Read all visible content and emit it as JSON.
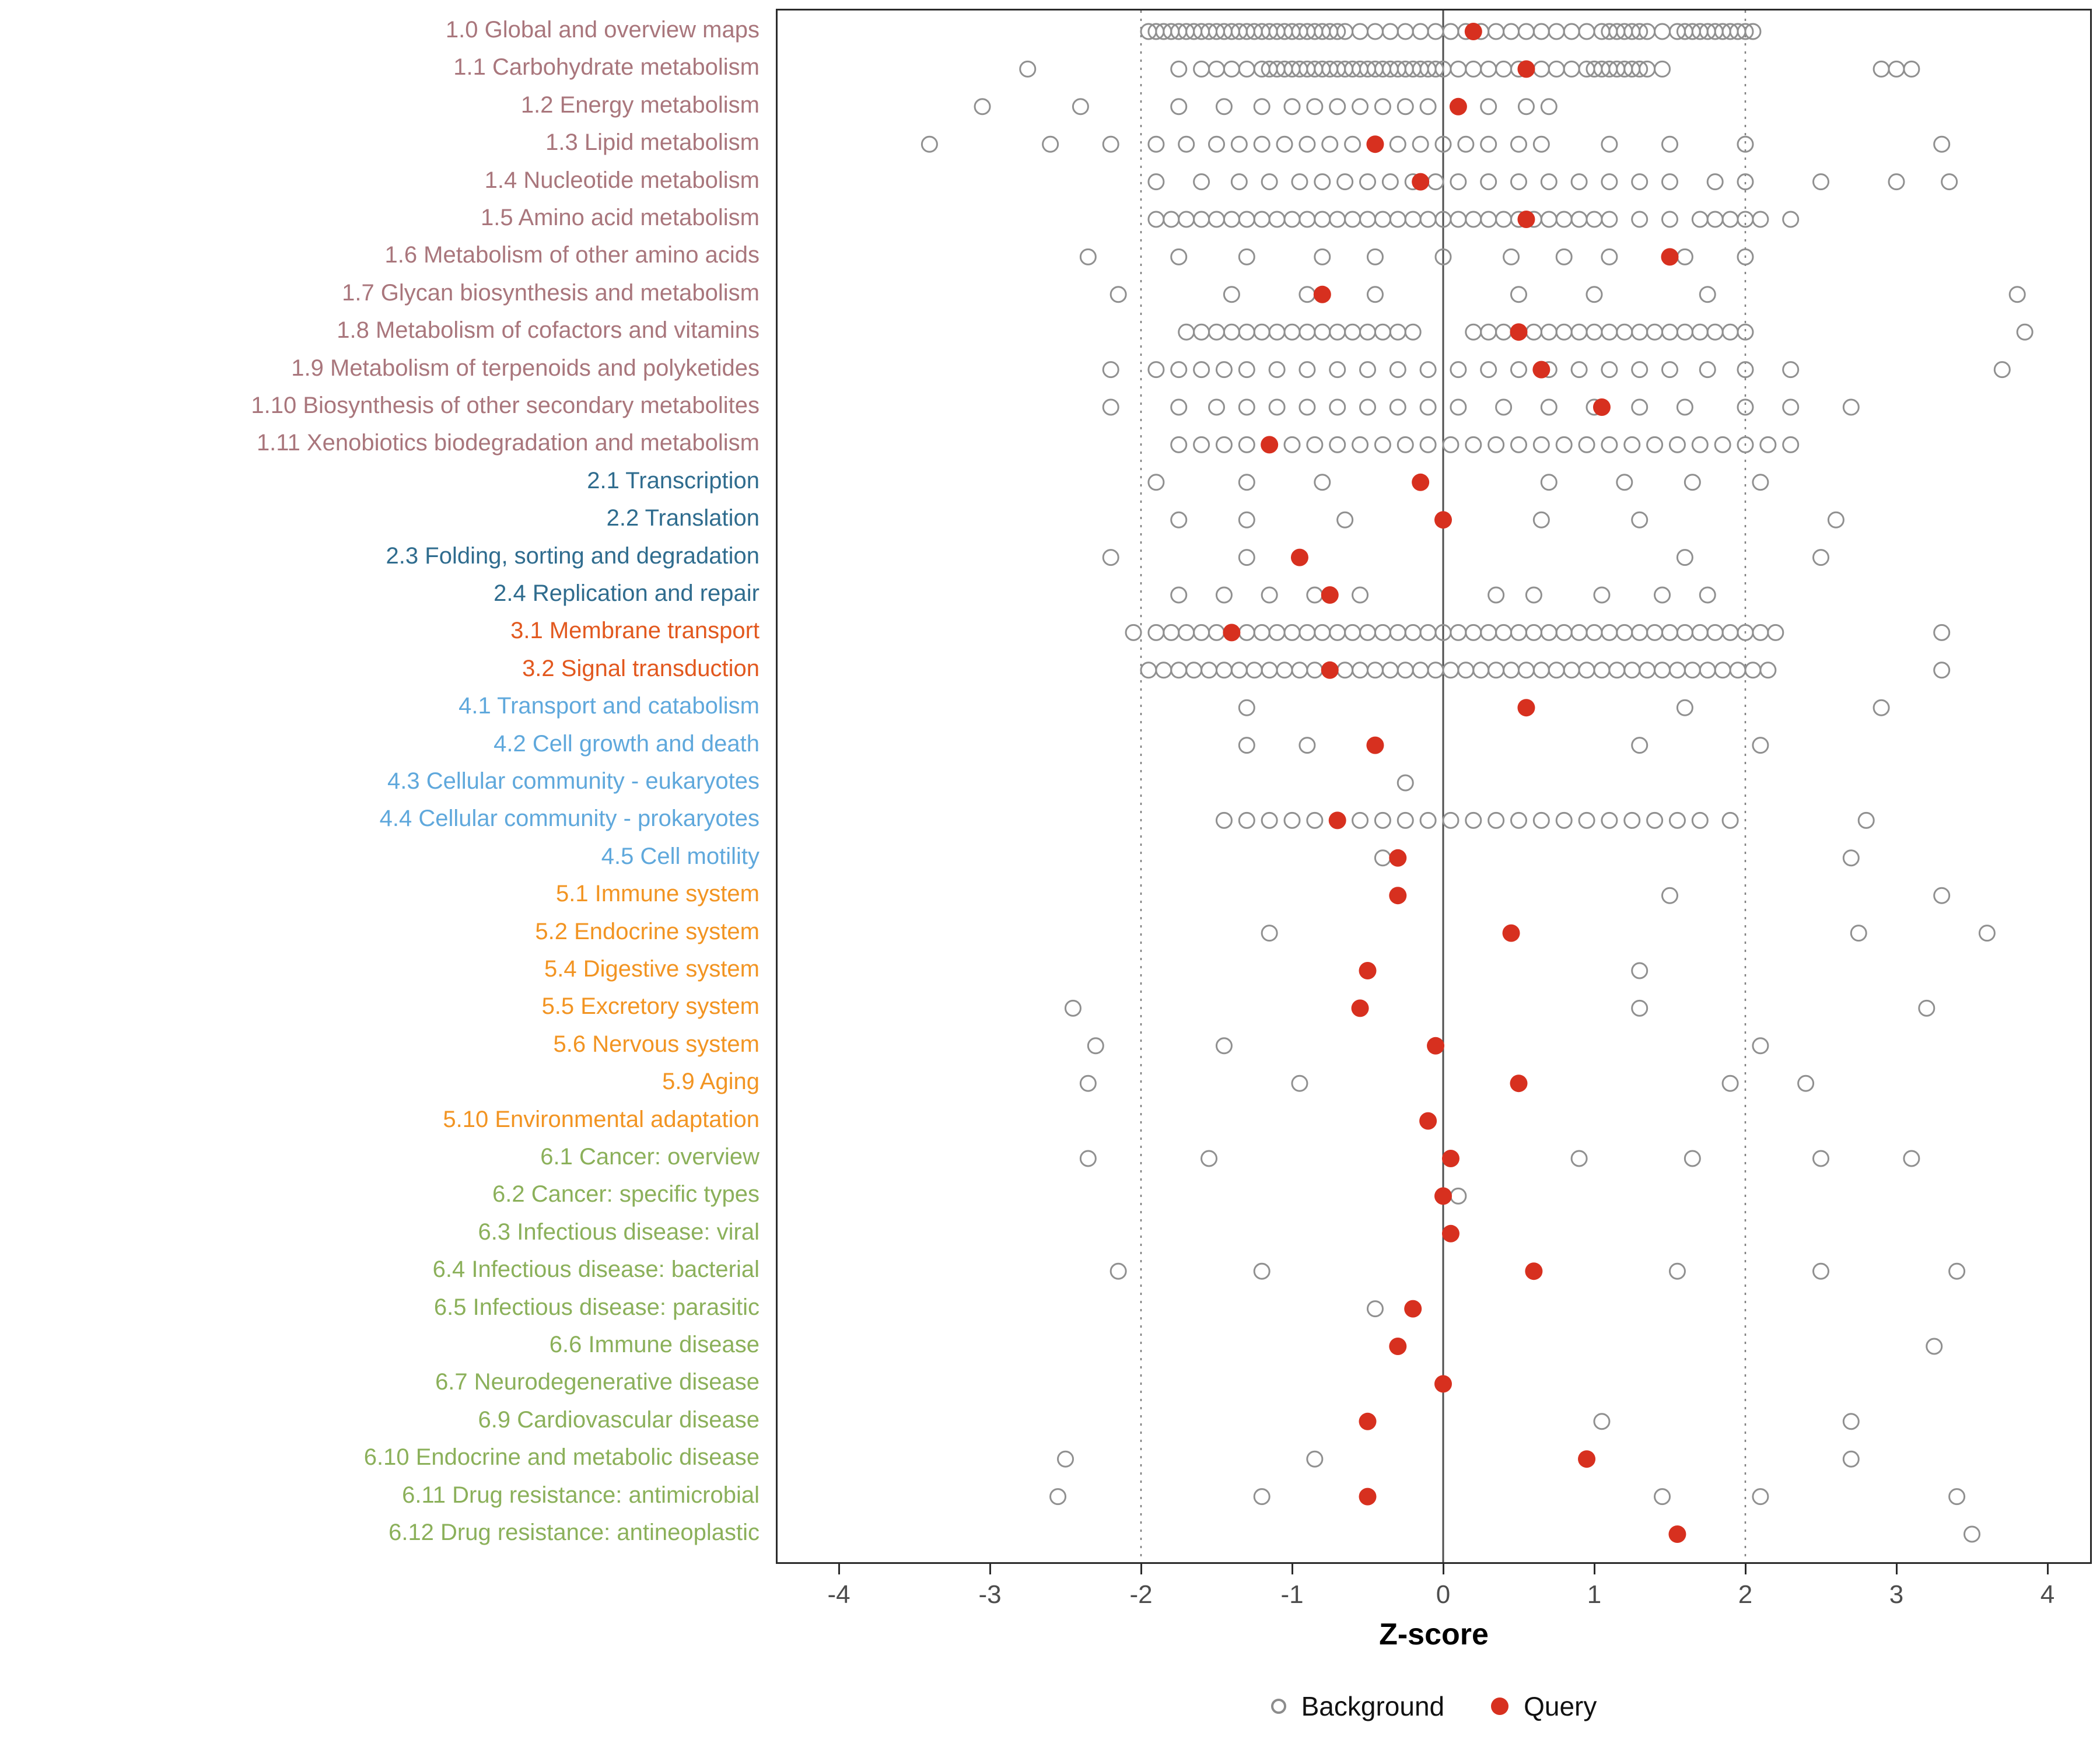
{
  "chart_data": {
    "type": "scatter",
    "title": "",
    "xlabel": "Z-score",
    "xlim": [
      -4.4,
      4.28
    ],
    "x_ticks": [
      -4,
      -3,
      -2,
      -1,
      0,
      1,
      2,
      3,
      4
    ],
    "grid": false,
    "legend_position": "bottom",
    "reference_lines": {
      "solid": [
        0
      ],
      "dotted": [
        -2,
        2
      ]
    },
    "legend": {
      "background_label": "Background",
      "query_label": "Query"
    },
    "colors": {
      "query": "#D7301F",
      "background_stroke": "#909090",
      "axis_text": "#4D4D4D",
      "dotted_line": "#7F7F7F",
      "zero_line": "#4D4D4D",
      "groups": {
        "metabolism": "#A9767C",
        "genetic": "#2F6C8E",
        "environmental": "#E2581E",
        "cellular": "#5FA8DC",
        "organismal": "#F29422",
        "disease": "#8BB05A"
      }
    },
    "rows": [
      {
        "label": "1.0 Global and overview maps",
        "group": "metabolism",
        "query": 0.2,
        "background": [
          -1.95,
          -1.9,
          -1.85,
          -1.8,
          -1.75,
          -1.7,
          -1.65,
          -1.6,
          -1.55,
          -1.5,
          -1.45,
          -1.4,
          -1.35,
          -1.3,
          -1.25,
          -1.2,
          -1.15,
          -1.1,
          -1.05,
          -1.0,
          -0.95,
          -0.9,
          -0.85,
          -0.8,
          -0.75,
          -0.7,
          -0.65,
          -0.55,
          -0.45,
          -0.35,
          -0.25,
          -0.15,
          -0.05,
          0.05,
          0.15,
          0.25,
          0.35,
          0.45,
          0.55,
          0.65,
          0.75,
          0.85,
          0.95,
          1.05,
          1.1,
          1.15,
          1.2,
          1.25,
          1.3,
          1.35,
          1.45,
          1.55,
          1.6,
          1.65,
          1.7,
          1.75,
          1.8,
          1.85,
          1.9,
          1.95,
          2.0,
          2.05
        ]
      },
      {
        "label": "1.1 Carbohydrate metabolism",
        "group": "metabolism",
        "query": 0.55,
        "background": [
          -2.75,
          -1.75,
          -1.6,
          -1.5,
          -1.4,
          -1.3,
          -1.2,
          -1.15,
          -1.1,
          -1.05,
          -1.0,
          -0.95,
          -0.9,
          -0.85,
          -0.8,
          -0.75,
          -0.7,
          -0.65,
          -0.6,
          -0.55,
          -0.5,
          -0.45,
          -0.4,
          -0.35,
          -0.3,
          -0.25,
          -0.2,
          -0.15,
          -0.1,
          -0.05,
          0.0,
          0.1,
          0.2,
          0.3,
          0.4,
          0.5,
          0.65,
          0.75,
          0.85,
          0.95,
          1.0,
          1.05,
          1.1,
          1.15,
          1.2,
          1.25,
          1.3,
          1.35,
          1.45,
          2.9,
          3.0,
          3.1
        ]
      },
      {
        "label": "1.2 Energy metabolism",
        "group": "metabolism",
        "query": 0.1,
        "background": [
          -3.05,
          -2.4,
          -1.75,
          -1.45,
          -1.2,
          -1.0,
          -0.85,
          -0.7,
          -0.55,
          -0.4,
          -0.25,
          -0.1,
          0.3,
          0.55,
          0.7
        ]
      },
      {
        "label": "1.3 Lipid metabolism",
        "group": "metabolism",
        "query": -0.45,
        "background": [
          -3.4,
          -2.6,
          -2.2,
          -1.9,
          -1.7,
          -1.5,
          -1.35,
          -1.2,
          -1.05,
          -0.9,
          -0.75,
          -0.6,
          -0.3,
          -0.15,
          0.0,
          0.15,
          0.3,
          0.5,
          0.65,
          1.1,
          1.5,
          2.0,
          3.3
        ]
      },
      {
        "label": "1.4 Nucleotide metabolism",
        "group": "metabolism",
        "query": -0.15,
        "background": [
          -1.9,
          -1.6,
          -1.35,
          -1.15,
          -0.95,
          -0.8,
          -0.65,
          -0.5,
          -0.35,
          -0.2,
          -0.05,
          0.1,
          0.3,
          0.5,
          0.7,
          0.9,
          1.1,
          1.3,
          1.5,
          1.8,
          2.0,
          2.5,
          3.0,
          3.35
        ]
      },
      {
        "label": "1.5 Amino acid metabolism",
        "group": "metabolism",
        "query": 0.55,
        "background": [
          -1.9,
          -1.8,
          -1.7,
          -1.6,
          -1.5,
          -1.4,
          -1.3,
          -1.2,
          -1.1,
          -1.0,
          -0.9,
          -0.8,
          -0.7,
          -0.6,
          -0.5,
          -0.4,
          -0.3,
          -0.2,
          -0.1,
          0.0,
          0.1,
          0.2,
          0.3,
          0.4,
          0.5,
          0.6,
          0.7,
          0.8,
          0.9,
          1.0,
          1.1,
          1.3,
          1.5,
          1.7,
          1.8,
          1.9,
          2.0,
          2.1,
          2.3
        ]
      },
      {
        "label": "1.6 Metabolism of other amino acids",
        "group": "metabolism",
        "query": 1.5,
        "background": [
          -2.35,
          -1.75,
          -1.3,
          -0.8,
          -0.45,
          0.0,
          0.45,
          0.8,
          1.1,
          1.6,
          2.0
        ]
      },
      {
        "label": "1.7 Glycan biosynthesis and metabolism",
        "group": "metabolism",
        "query": -0.8,
        "background": [
          -2.15,
          -1.4,
          -0.9,
          -0.45,
          0.5,
          1.0,
          1.75,
          3.8
        ]
      },
      {
        "label": "1.8 Metabolism of cofactors and vitamins",
        "group": "metabolism",
        "query": 0.5,
        "background": [
          -1.7,
          -1.6,
          -1.5,
          -1.4,
          -1.3,
          -1.2,
          -1.1,
          -1.0,
          -0.9,
          -0.8,
          -0.7,
          -0.6,
          -0.5,
          -0.4,
          -0.3,
          -0.2,
          0.2,
          0.3,
          0.4,
          0.5,
          0.6,
          0.7,
          0.8,
          0.9,
          1.0,
          1.1,
          1.2,
          1.3,
          1.4,
          1.5,
          1.6,
          1.7,
          1.8,
          1.9,
          2.0,
          3.85
        ]
      },
      {
        "label": "1.9 Metabolism of terpenoids and polyketides",
        "group": "metabolism",
        "query": 0.65,
        "background": [
          -2.2,
          -1.9,
          -1.75,
          -1.6,
          -1.45,
          -1.3,
          -1.1,
          -0.9,
          -0.7,
          -0.5,
          -0.3,
          -0.1,
          0.1,
          0.3,
          0.5,
          0.7,
          0.9,
          1.1,
          1.3,
          1.5,
          1.75,
          2.0,
          2.3,
          3.7
        ]
      },
      {
        "label": "1.10 Biosynthesis of other secondary metabolites",
        "group": "metabolism",
        "query": 1.05,
        "background": [
          -2.2,
          -1.75,
          -1.5,
          -1.3,
          -1.1,
          -0.9,
          -0.7,
          -0.5,
          -0.3,
          -0.1,
          0.1,
          0.4,
          0.7,
          1.0,
          1.3,
          1.6,
          2.0,
          2.3,
          2.7
        ]
      },
      {
        "label": "1.11 Xenobiotics biodegradation and metabolism",
        "group": "metabolism",
        "query": -1.15,
        "background": [
          -1.75,
          -1.6,
          -1.45,
          -1.3,
          -1.15,
          -1.0,
          -0.85,
          -0.7,
          -0.55,
          -0.4,
          -0.25,
          -0.1,
          0.05,
          0.2,
          0.35,
          0.5,
          0.65,
          0.8,
          0.95,
          1.1,
          1.25,
          1.4,
          1.55,
          1.7,
          1.85,
          2.0,
          2.15,
          2.3
        ]
      },
      {
        "label": "2.1 Transcription",
        "group": "genetic",
        "query": -0.15,
        "background": [
          -1.9,
          -1.3,
          -0.8,
          0.7,
          1.2,
          1.65,
          2.1
        ]
      },
      {
        "label": "2.2 Translation",
        "group": "genetic",
        "query": 0.0,
        "background": [
          -1.75,
          -1.3,
          -0.65,
          0.65,
          1.3,
          2.6
        ]
      },
      {
        "label": "2.3 Folding, sorting and degradation",
        "group": "genetic",
        "query": -0.95,
        "background": [
          -2.2,
          -1.3,
          1.6,
          2.5
        ]
      },
      {
        "label": "2.4 Replication and repair",
        "group": "genetic",
        "query": -0.75,
        "background": [
          -1.75,
          -1.45,
          -1.15,
          -0.85,
          -0.55,
          0.35,
          0.6,
          1.05,
          1.45,
          1.75
        ]
      },
      {
        "label": "3.1 Membrane transport",
        "group": "environmental",
        "query": -1.4,
        "background": [
          -2.05,
          -1.9,
          -1.8,
          -1.7,
          -1.6,
          -1.5,
          -1.3,
          -1.2,
          -1.1,
          -1.0,
          -0.9,
          -0.8,
          -0.7,
          -0.6,
          -0.5,
          -0.4,
          -0.3,
          -0.2,
          -0.1,
          0.0,
          0.1,
          0.2,
          0.3,
          0.4,
          0.5,
          0.6,
          0.7,
          0.8,
          0.9,
          1.0,
          1.1,
          1.2,
          1.3,
          1.4,
          1.5,
          1.6,
          1.7,
          1.8,
          1.9,
          2.0,
          2.1,
          2.2,
          3.3
        ]
      },
      {
        "label": "3.2 Signal transduction",
        "group": "environmental",
        "query": -0.75,
        "background": [
          -1.95,
          -1.85,
          -1.75,
          -1.65,
          -1.55,
          -1.45,
          -1.35,
          -1.25,
          -1.15,
          -1.05,
          -0.95,
          -0.85,
          -0.65,
          -0.55,
          -0.45,
          -0.35,
          -0.25,
          -0.15,
          -0.05,
          0.05,
          0.15,
          0.25,
          0.35,
          0.45,
          0.55,
          0.65,
          0.75,
          0.85,
          0.95,
          1.05,
          1.15,
          1.25,
          1.35,
          1.45,
          1.55,
          1.65,
          1.75,
          1.85,
          1.95,
          2.05,
          2.15,
          3.3
        ]
      },
      {
        "label": "4.1 Transport and catabolism",
        "group": "cellular",
        "query": 0.55,
        "background": [
          -1.3,
          1.6,
          2.9
        ]
      },
      {
        "label": "4.2 Cell growth and death",
        "group": "cellular",
        "query": -0.45,
        "background": [
          -1.3,
          -0.9,
          1.3,
          2.1
        ]
      },
      {
        "label": "4.3 Cellular community - eukaryotes",
        "group": "cellular",
        "query": null,
        "background": [
          -0.25
        ]
      },
      {
        "label": "4.4 Cellular community - prokaryotes",
        "group": "cellular",
        "query": -0.7,
        "background": [
          -1.45,
          -1.3,
          -1.15,
          -1.0,
          -0.85,
          -0.55,
          -0.4,
          -0.25,
          -0.1,
          0.05,
          0.2,
          0.35,
          0.5,
          0.65,
          0.8,
          0.95,
          1.1,
          1.25,
          1.4,
          1.55,
          1.7,
          1.9,
          2.8
        ]
      },
      {
        "label": "4.5 Cell motility",
        "group": "cellular",
        "query": -0.3,
        "background": [
          -0.4,
          2.7
        ]
      },
      {
        "label": "5.1 Immune system",
        "group": "organismal",
        "query": -0.3,
        "background": [
          1.5,
          3.3
        ]
      },
      {
        "label": "5.2 Endocrine system",
        "group": "organismal",
        "query": 0.45,
        "background": [
          -1.15,
          2.75,
          3.6
        ]
      },
      {
        "label": "5.4 Digestive system",
        "group": "organismal",
        "query": -0.5,
        "background": [
          1.3
        ]
      },
      {
        "label": "5.5 Excretory system",
        "group": "organismal",
        "query": -0.55,
        "background": [
          -2.45,
          1.3,
          3.2
        ]
      },
      {
        "label": "5.6 Nervous system",
        "group": "organismal",
        "query": -0.05,
        "background": [
          -2.3,
          -1.45,
          2.1
        ]
      },
      {
        "label": "5.9 Aging",
        "group": "organismal",
        "query": 0.5,
        "background": [
          -2.35,
          -0.95,
          1.9,
          2.4
        ]
      },
      {
        "label": "5.10 Environmental adaptation",
        "group": "organismal",
        "query": -0.1,
        "background": []
      },
      {
        "label": "6.1 Cancer: overview",
        "group": "disease",
        "query": 0.05,
        "background": [
          -2.35,
          -1.55,
          0.9,
          1.65,
          2.5,
          3.1
        ]
      },
      {
        "label": "6.2 Cancer: specific types",
        "group": "disease",
        "query": 0.0,
        "background": [
          0.1
        ]
      },
      {
        "label": "6.3 Infectious disease: viral",
        "group": "disease",
        "query": 0.05,
        "background": []
      },
      {
        "label": "6.4 Infectious disease: bacterial",
        "group": "disease",
        "query": 0.6,
        "background": [
          -2.15,
          -1.2,
          1.55,
          2.5,
          3.4
        ]
      },
      {
        "label": "6.5 Infectious disease: parasitic",
        "group": "disease",
        "query": -0.2,
        "background": [
          -0.45
        ]
      },
      {
        "label": "6.6 Immune disease",
        "group": "disease",
        "query": -0.3,
        "background": [
          3.25
        ]
      },
      {
        "label": "6.7 Neurodegenerative disease",
        "group": "disease",
        "query": 0.0,
        "background": []
      },
      {
        "label": "6.9 Cardiovascular disease",
        "group": "disease",
        "query": -0.5,
        "background": [
          1.05,
          2.7
        ]
      },
      {
        "label": "6.10 Endocrine and metabolic disease",
        "group": "disease",
        "query": 0.95,
        "background": [
          -2.5,
          -0.85,
          2.7
        ]
      },
      {
        "label": "6.11 Drug resistance: antimicrobial",
        "group": "disease",
        "query": -0.5,
        "background": [
          -2.55,
          -1.2,
          1.45,
          2.1,
          3.4
        ]
      },
      {
        "label": "6.12 Drug resistance: antineoplastic",
        "group": "disease",
        "query": 1.55,
        "background": [
          3.5
        ]
      }
    ]
  }
}
